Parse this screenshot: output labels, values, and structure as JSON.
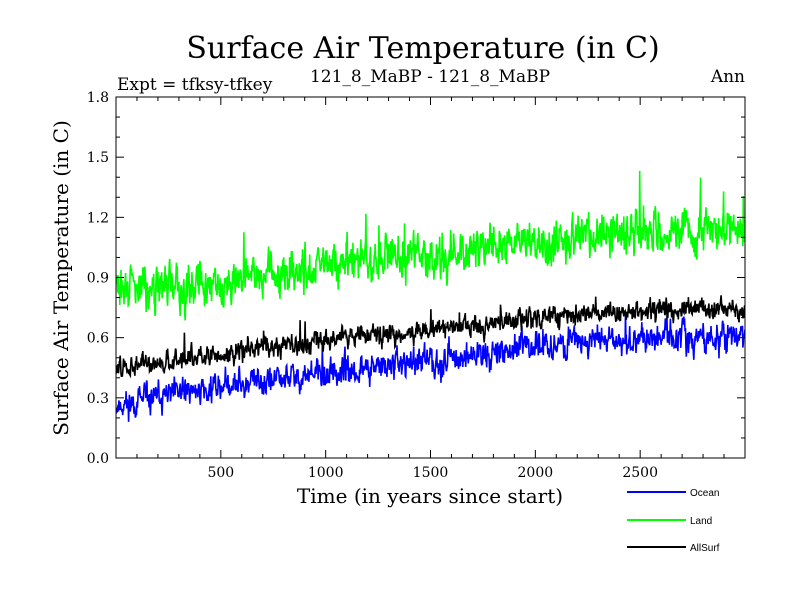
{
  "chart_data": {
    "type": "line",
    "title": "Surface Air Temperature (in C)",
    "subtitle_left": "Expt = tfksy-tfkey",
    "subtitle_center": "121_8_MaBP - 121_8_MaBP",
    "subtitle_right": "Ann",
    "xlabel": "Time (in years since start)",
    "ylabel": "Surface Air Temperature (in C)",
    "xlim": [
      0,
      3000
    ],
    "ylim": [
      0.0,
      1.8
    ],
    "xticks": [
      500,
      1000,
      1500,
      2000,
      2500
    ],
    "yticks": [
      "0.0",
      "0.3",
      "0.6",
      "0.9",
      "1.2",
      "1.5",
      "1.8"
    ],
    "series": [
      {
        "name": "Ocean",
        "color": "#0000ff",
        "trend_x": [
          0,
          500,
          1000,
          1500,
          2000,
          2500,
          3000
        ],
        "trend_y": [
          0.26,
          0.36,
          0.42,
          0.48,
          0.56,
          0.6,
          0.6
        ],
        "noise_amplitude": 0.11,
        "seed": 11
      },
      {
        "name": "Land",
        "color": "#00ff00",
        "trend_x": [
          0,
          500,
          1000,
          1500,
          2000,
          2500,
          3000
        ],
        "trend_y": [
          0.85,
          0.88,
          0.95,
          1.02,
          1.08,
          1.12,
          1.14
        ],
        "noise_amplitude": 0.16,
        "seed": 29
      },
      {
        "name": "AllSurf",
        "color": "#000000",
        "trend_x": [
          0,
          500,
          1000,
          1500,
          2000,
          2500,
          3000
        ],
        "trend_y": [
          0.45,
          0.52,
          0.59,
          0.64,
          0.7,
          0.73,
          0.74
        ],
        "noise_amplitude": 0.08,
        "seed": 47
      }
    ]
  }
}
